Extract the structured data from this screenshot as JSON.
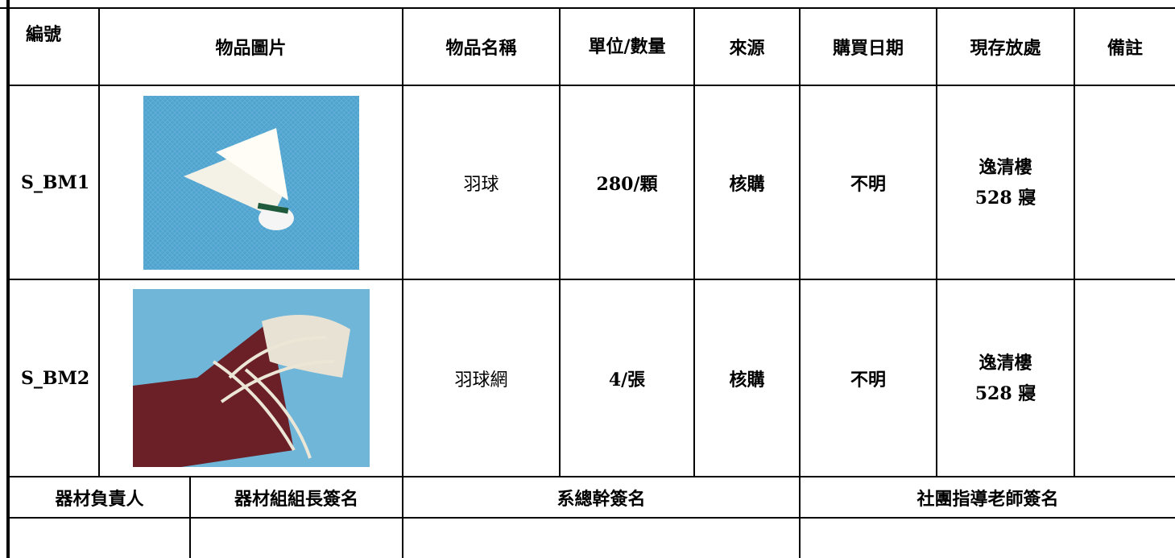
{
  "table": {
    "header": [
      "編號",
      "物品圖片",
      "物品名稱",
      "單位/數量",
      "來源",
      "購買日期",
      "現存放處",
      "備註"
    ],
    "rows": [
      {
        "id": "S_BM1",
        "name": "羽球",
        "quantity": "280/顆",
        "source": "核購",
        "purchase_date": "不明",
        "location": [
          "逸清樓",
          "528 寢"
        ]
      },
      {
        "id": "S_BM2",
        "name": "羽球網",
        "quantity": "4/張",
        "source": "核購",
        "purchase_date": "不明",
        "location": [
          "逸清樓",
          "528 寢"
        ]
      }
    ]
  },
  "signatures": [
    "器材負責人",
    "器材組組長簽名",
    "系總幹簽名",
    "社團指導老師簽名"
  ]
}
